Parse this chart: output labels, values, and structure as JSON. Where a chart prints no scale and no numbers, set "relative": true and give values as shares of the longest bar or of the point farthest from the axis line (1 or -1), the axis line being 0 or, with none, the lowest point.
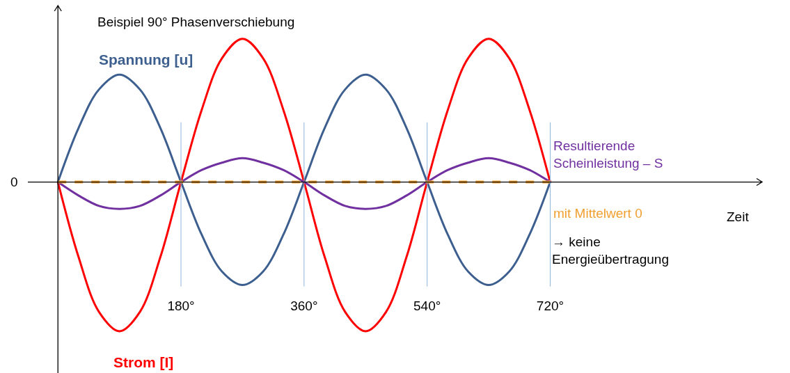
{
  "chart_data": {
    "type": "line",
    "relative": true,
    "title": "Beispiel 90° Phasenverschiebung",
    "xlabel": "Zeit",
    "x": [
      0,
      30,
      60,
      90,
      120,
      150,
      180,
      210,
      240,
      270,
      300,
      330,
      360,
      390,
      420,
      450,
      480,
      510,
      540,
      570,
      600,
      630,
      660,
      690,
      720
    ],
    "xlim": [
      -44,
      1030
    ],
    "xticks": [
      {
        "value": 180,
        "label": "180°"
      },
      {
        "value": 360,
        "label": "360°"
      },
      {
        "value": 540,
        "label": "540°"
      },
      {
        "value": 720,
        "label": "720°"
      }
    ],
    "series": [
      {
        "name": "Spannung [u]",
        "color": "#3d5f8f",
        "values": [
          0,
          0.36,
          0.62,
          0.72,
          0.62,
          0.36,
          0,
          -0.35,
          -0.6,
          -0.69,
          -0.6,
          -0.35,
          0,
          0.36,
          0.62,
          0.72,
          0.62,
          0.36,
          0,
          -0.35,
          -0.6,
          -0.69,
          -0.6,
          -0.35,
          0
        ]
      },
      {
        "name": "Strom [I]",
        "color": "#ff0000",
        "values": [
          0,
          -0.5,
          -0.87,
          -1,
          -0.87,
          -0.5,
          0,
          0.48,
          0.83,
          0.96,
          0.83,
          0.48,
          0,
          -0.5,
          -0.87,
          -1,
          -0.87,
          -0.5,
          0,
          0.48,
          0.83,
          0.96,
          0.83,
          0.48,
          0
        ]
      },
      {
        "name": "Resultierende Scheinleistung – S",
        "color": "#7030a0",
        "values": [
          0,
          -0.09,
          -0.16,
          -0.18,
          -0.16,
          -0.09,
          0,
          0.08,
          0.13,
          0.16,
          0.13,
          0.08,
          0,
          -0.09,
          -0.16,
          -0.18,
          -0.16,
          -0.09,
          0,
          0.08,
          0.13,
          0.16,
          0.13,
          0.08,
          0
        ]
      },
      {
        "name": "mit Mittelwert 0",
        "color": "#f0a030",
        "line_style": "dashed",
        "x": [
          0,
          720
        ],
        "values": [
          0,
          0
        ]
      }
    ],
    "ref_lines": [
      {
        "axis": "x",
        "value": 180,
        "color": "#8fb3d9"
      },
      {
        "axis": "x",
        "value": 360,
        "color": "#8fb3d9"
      },
      {
        "axis": "x",
        "value": 540,
        "color": "#8fb3d9"
      },
      {
        "axis": "x",
        "value": 720,
        "color": "#8fb3d9"
      }
    ],
    "annotations": [
      "0",
      "→ keine\nEnergieübertragung"
    ],
    "legend": false,
    "grid": false,
    "marker": "none",
    "line_style": "solid"
  }
}
